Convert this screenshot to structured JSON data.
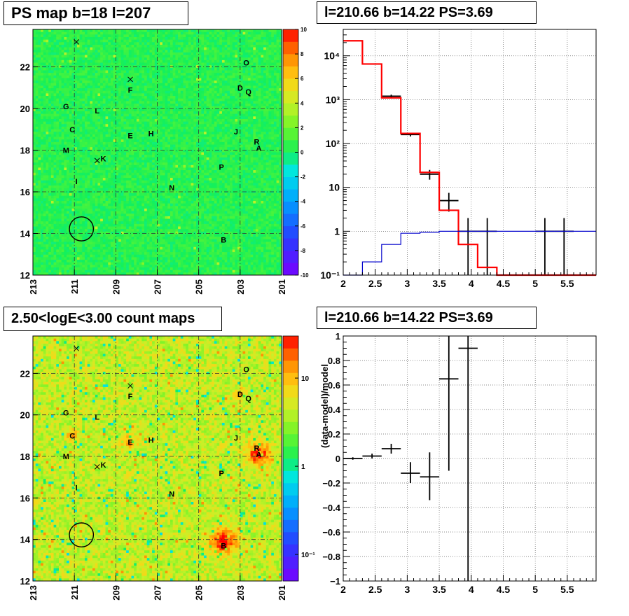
{
  "chart_data": [
    {
      "type": "heatmap",
      "title": "PS map b=18 l=207",
      "xrange": [
        213,
        201
      ],
      "yrange": [
        12,
        23.8
      ],
      "xticks": [
        213,
        211,
        209,
        207,
        205,
        203,
        201
      ],
      "yticks": [
        12,
        14,
        16,
        18,
        20,
        22
      ],
      "colorbar": {
        "min": -10,
        "max": 10,
        "ticks": [
          -10,
          -8,
          -6,
          -4,
          -2,
          0,
          2,
          4,
          6,
          8,
          10
        ],
        "scale": "linear"
      },
      "background_color": "#3cf05a",
      "grid": true,
      "labels": [
        {
          "text": "O",
          "l": 202.7,
          "b": 22.2
        },
        {
          "text": "F",
          "l": 208.3,
          "b": 20.9
        },
        {
          "text": "D",
          "l": 203.0,
          "b": 21.0
        },
        {
          "text": "Q",
          "l": 202.6,
          "b": 20.8
        },
        {
          "text": "G",
          "l": 211.4,
          "b": 20.1
        },
        {
          "text": "L",
          "l": 209.9,
          "b": 19.9
        },
        {
          "text": "C",
          "l": 211.1,
          "b": 19.0
        },
        {
          "text": "J",
          "l": 203.2,
          "b": 18.9
        },
        {
          "text": "E",
          "l": 208.3,
          "b": 18.7
        },
        {
          "text": "H",
          "l": 207.3,
          "b": 18.8
        },
        {
          "text": "R",
          "l": 202.2,
          "b": 18.4
        },
        {
          "text": "A",
          "l": 202.1,
          "b": 18.1
        },
        {
          "text": "M",
          "l": 211.4,
          "b": 18.0
        },
        {
          "text": "K",
          "l": 209.6,
          "b": 17.6
        },
        {
          "text": "P",
          "l": 203.9,
          "b": 17.2
        },
        {
          "text": "I",
          "l": 210.9,
          "b": 16.5
        },
        {
          "text": "N",
          "l": 206.3,
          "b": 16.2
        },
        {
          "text": "B",
          "l": 203.8,
          "b": 13.7
        }
      ],
      "crosses": [
        {
          "l": 210.9,
          "b": 23.2
        },
        {
          "l": 208.3,
          "b": 21.4
        },
        {
          "l": 209.9,
          "b": 17.5
        }
      ],
      "circle": {
        "l": 210.66,
        "b": 14.22,
        "r": 0.4
      }
    },
    {
      "type": "histogram",
      "title": "l=210.66 b=14.22 PS=3.69",
      "xrange": [
        2,
        5.95
      ],
      "yrange": [
        0.1,
        40000
      ],
      "yscale": "log",
      "xticks": [
        2,
        2.5,
        3,
        3.5,
        4,
        4.5,
        5,
        5.5
      ],
      "yticks": [
        0.1,
        1,
        10,
        100,
        1000,
        10000
      ],
      "ytick_labels": [
        "10⁻¹",
        "1",
        "10",
        "10²",
        "10³",
        "10⁴"
      ],
      "grid": true,
      "bin_edges": [
        2.0,
        2.3,
        2.6,
        2.9,
        3.2,
        3.5,
        3.8,
        4.1,
        4.4,
        4.7,
        5.0,
        5.3,
        5.6,
        5.95
      ],
      "series": [
        {
          "type": "data",
          "color": "#000000",
          "points": [
            {
              "x": 2.75,
              "y": 1200,
              "ylo": 1100,
              "yhi": 1300
            },
            {
              "x": 3.05,
              "y": 160,
              "ylo": 145,
              "yhi": 175
            },
            {
              "x": 3.35,
              "y": 20,
              "ylo": 15,
              "yhi": 25
            },
            {
              "x": 3.65,
              "y": 5,
              "ylo": 2.8,
              "yhi": 7.5
            },
            {
              "x": 3.95,
              "y": 1,
              "ylo": 0.1,
              "yhi": 2
            },
            {
              "x": 4.25,
              "y": 1,
              "ylo": 0.1,
              "yhi": 2
            },
            {
              "x": 5.15,
              "y": 1,
              "ylo": 0.1,
              "yhi": 2
            },
            {
              "x": 5.45,
              "y": 1,
              "ylo": 0.1,
              "yhi": 2
            }
          ]
        },
        {
          "type": "step",
          "color": "#ff0000",
          "values": [
            22000,
            6500,
            1100,
            170,
            22,
            3,
            0.5,
            0.15,
            0.1,
            0.1,
            0.1,
            0.1,
            0.1
          ]
        },
        {
          "type": "step",
          "color": "#0000cc",
          "values": [
            0.1,
            0.2,
            0.5,
            0.9,
            0.95,
            1,
            1,
            1,
            1,
            1,
            1,
            1,
            1
          ]
        }
      ]
    },
    {
      "type": "heatmap",
      "title": "2.50<logE<3.00 count maps",
      "xrange": [
        213,
        201
      ],
      "yrange": [
        12,
        23.8
      ],
      "xticks": [
        213,
        211,
        209,
        207,
        205,
        203,
        201
      ],
      "yticks": [
        12,
        14,
        16,
        18,
        20,
        22
      ],
      "colorbar": {
        "scale": "log",
        "min": 0.05,
        "max": 30,
        "labelled_ticks": [
          {
            "value": 0.1,
            "label": "10⁻¹"
          },
          {
            "value": 1,
            "label": "1"
          },
          {
            "value": 10,
            "label": "10"
          }
        ]
      },
      "background_color": "#dce85a",
      "grid": true,
      "sources": [
        {
          "l": 202.1,
          "b": 18.1,
          "strength": 1.0,
          "r": 0.55
        },
        {
          "l": 203.8,
          "b": 13.9,
          "strength": 1.0,
          "r": 0.6
        },
        {
          "l": 208.3,
          "b": 18.7,
          "strength": 0.55,
          "r": 0.35
        },
        {
          "l": 211.1,
          "b": 19.0,
          "strength": 0.5,
          "r": 0.3
        },
        {
          "l": 203.0,
          "b": 21.0,
          "strength": 0.45,
          "r": 0.3
        }
      ],
      "labels": [
        {
          "text": "O",
          "l": 202.7,
          "b": 22.2
        },
        {
          "text": "F",
          "l": 208.3,
          "b": 20.9
        },
        {
          "text": "D",
          "l": 203.0,
          "b": 21.0
        },
        {
          "text": "Q",
          "l": 202.6,
          "b": 20.8
        },
        {
          "text": "G",
          "l": 211.4,
          "b": 20.1
        },
        {
          "text": "L",
          "l": 209.9,
          "b": 19.9
        },
        {
          "text": "C",
          "l": 211.1,
          "b": 19.0
        },
        {
          "text": "J",
          "l": 203.2,
          "b": 18.9
        },
        {
          "text": "E",
          "l": 208.3,
          "b": 18.7
        },
        {
          "text": "H",
          "l": 207.3,
          "b": 18.8
        },
        {
          "text": "R",
          "l": 202.2,
          "b": 18.4
        },
        {
          "text": "A",
          "l": 202.1,
          "b": 18.1
        },
        {
          "text": "M",
          "l": 211.4,
          "b": 18.0
        },
        {
          "text": "K",
          "l": 209.6,
          "b": 17.6
        },
        {
          "text": "P",
          "l": 203.9,
          "b": 17.2
        },
        {
          "text": "I",
          "l": 210.9,
          "b": 16.5
        },
        {
          "text": "N",
          "l": 206.3,
          "b": 16.2
        },
        {
          "text": "B",
          "l": 203.8,
          "b": 13.7
        }
      ],
      "crosses": [
        {
          "l": 210.9,
          "b": 23.2
        },
        {
          "l": 208.3,
          "b": 21.4
        },
        {
          "l": 209.9,
          "b": 17.5
        }
      ],
      "circle": {
        "l": 210.66,
        "b": 14.22,
        "r": 0.4
      }
    },
    {
      "type": "scatter",
      "title": "l=210.66 b=14.22 PS=3.69",
      "xrange": [
        2,
        5.95
      ],
      "yrange": [
        -1,
        1
      ],
      "xticks": [
        2,
        2.5,
        3,
        3.5,
        4,
        4.5,
        5,
        5.5
      ],
      "yticks": [
        -1,
        -0.8,
        -0.6,
        -0.4,
        -0.2,
        0,
        0.2,
        0.4,
        0.6,
        0.8,
        1
      ],
      "ylabel": "(data-model)/model",
      "grid": true,
      "points": [
        {
          "x": 2.15,
          "y": 0.0,
          "xerr": 0.15,
          "ylo": -0.01,
          "yhi": 0.01
        },
        {
          "x": 2.45,
          "y": 0.02,
          "xerr": 0.15,
          "ylo": 0.0,
          "yhi": 0.04
        },
        {
          "x": 2.75,
          "y": 0.08,
          "xerr": 0.15,
          "ylo": 0.04,
          "yhi": 0.12
        },
        {
          "x": 3.05,
          "y": -0.12,
          "xerr": 0.15,
          "ylo": -0.2,
          "yhi": -0.03
        },
        {
          "x": 3.35,
          "y": -0.15,
          "xerr": 0.15,
          "ylo": -0.34,
          "yhi": 0.05
        },
        {
          "x": 3.65,
          "y": 0.65,
          "xerr": 0.15,
          "ylo": -0.1,
          "yhi": 1.0
        },
        {
          "x": 3.95,
          "y": 0.9,
          "xerr": 0.15,
          "ylo": -1.0,
          "yhi": 1.0
        }
      ]
    }
  ]
}
